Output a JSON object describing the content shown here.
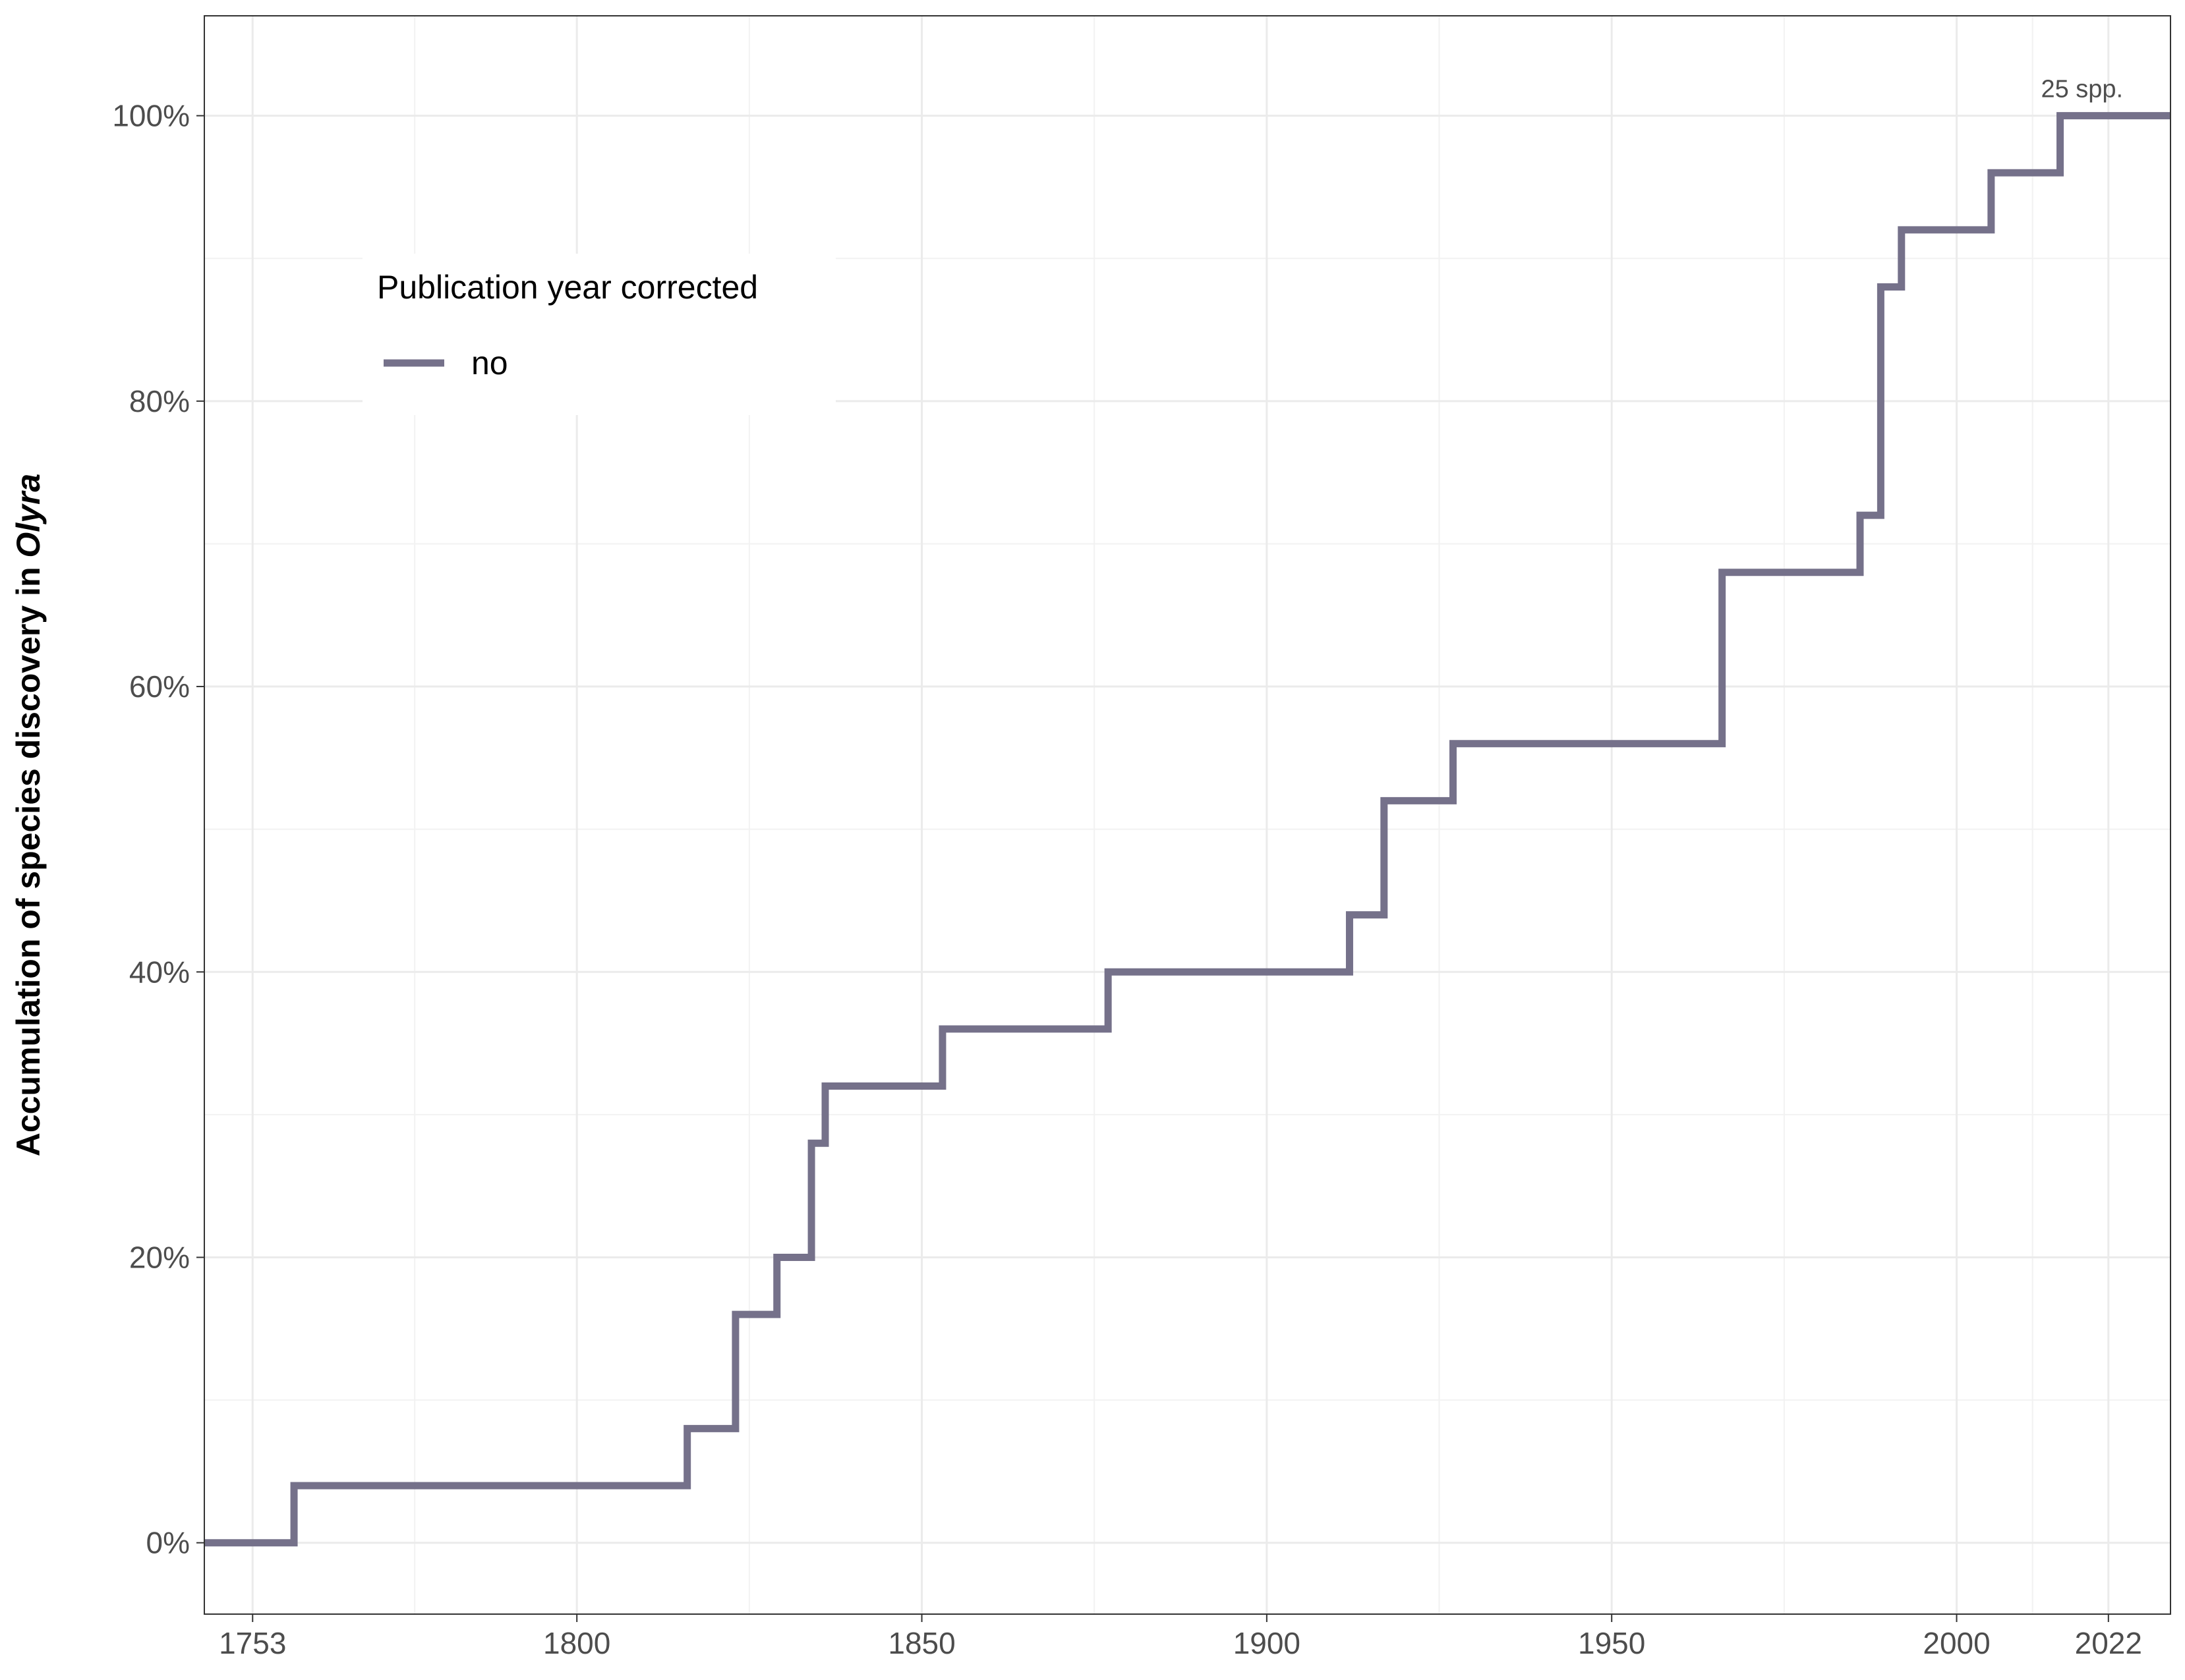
{
  "chart_data": {
    "type": "line",
    "step": true,
    "ylabel_prefix": "Accumulation of species discovery in ",
    "ylabel_italic": "Olyra",
    "xlim": [
      1746,
      2031
    ],
    "ylim": [
      -0.05,
      1.07
    ],
    "x_ticks": [
      1753,
      1800,
      1850,
      1900,
      1950,
      2000,
      2022
    ],
    "y_ticks": [
      0,
      0.2,
      0.4,
      0.6,
      0.8,
      1.0
    ],
    "y_tick_labels": [
      "0%",
      "20%",
      "40%",
      "60%",
      "80%",
      "100%"
    ],
    "grid": true,
    "legend": {
      "title": "Publication year corrected",
      "placement": "top-left inside",
      "entries": [
        {
          "label": "no",
          "color": "#75718a"
        }
      ]
    },
    "annotation": {
      "text": "25  spp.",
      "x": 2022,
      "y": 1.0
    },
    "series": [
      {
        "name": "no",
        "color": "#75718a",
        "x": [
          1746,
          1759,
          1816,
          1823,
          1829,
          1834,
          1836,
          1853,
          1877,
          1912,
          1917,
          1927,
          1966,
          1986,
          1989,
          1992,
          2005,
          2015,
          2031
        ],
        "y": [
          0.0,
          0.04,
          0.08,
          0.16,
          0.2,
          0.28,
          0.32,
          0.36,
          0.4,
          0.44,
          0.52,
          0.56,
          0.68,
          0.72,
          0.88,
          0.92,
          0.96,
          1.0,
          1.0
        ]
      }
    ]
  }
}
